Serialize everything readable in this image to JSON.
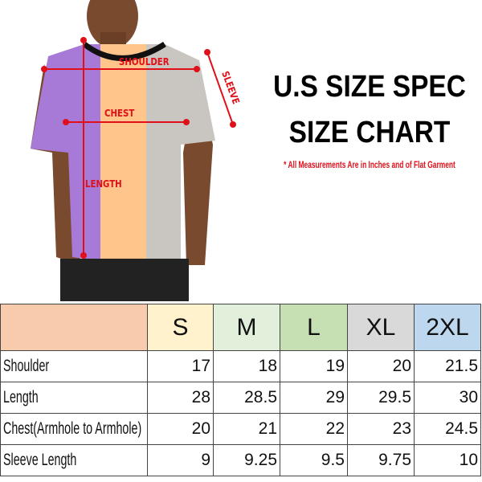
{
  "heading": {
    "line1": "U.S SIZE SPEC",
    "line2": "SIZE CHART",
    "note": "* All Measurements Are in Inches and of Flat Garment"
  },
  "figure_labels": {
    "shoulder": "SHOULDER",
    "sleeve": "SLEEVE",
    "chest": "CHEST",
    "length": "LENGTH"
  },
  "colors": {
    "label_red": "#e0101a",
    "header_blank": "#f8cbad",
    "S": "#fff2cc",
    "M": "#e2efda",
    "L": "#c6e0b4",
    "XL": "#d9d9d9",
    "2XL": "#bdd7ee",
    "shirt_purple": "#a87ad8",
    "shirt_orange": "#ffc58a",
    "shirt_gray": "#c9c5c0"
  },
  "table": {
    "sizes": [
      "S",
      "M",
      "L",
      "XL",
      "2XL"
    ],
    "rows": [
      {
        "label": "Shoulder",
        "values": [
          "17",
          "18",
          "19",
          "20",
          "21.5"
        ]
      },
      {
        "label": "Length",
        "values": [
          "28",
          "28.5",
          "29",
          "29.5",
          "30"
        ]
      },
      {
        "label": "Chest(Armhole to Armhole)",
        "values": [
          "20",
          "21",
          "22",
          "23",
          "24.5"
        ]
      },
      {
        "label": "Sleeve Length",
        "values": [
          "9",
          "9.25",
          "9.5",
          "9.75",
          "10"
        ]
      }
    ]
  }
}
